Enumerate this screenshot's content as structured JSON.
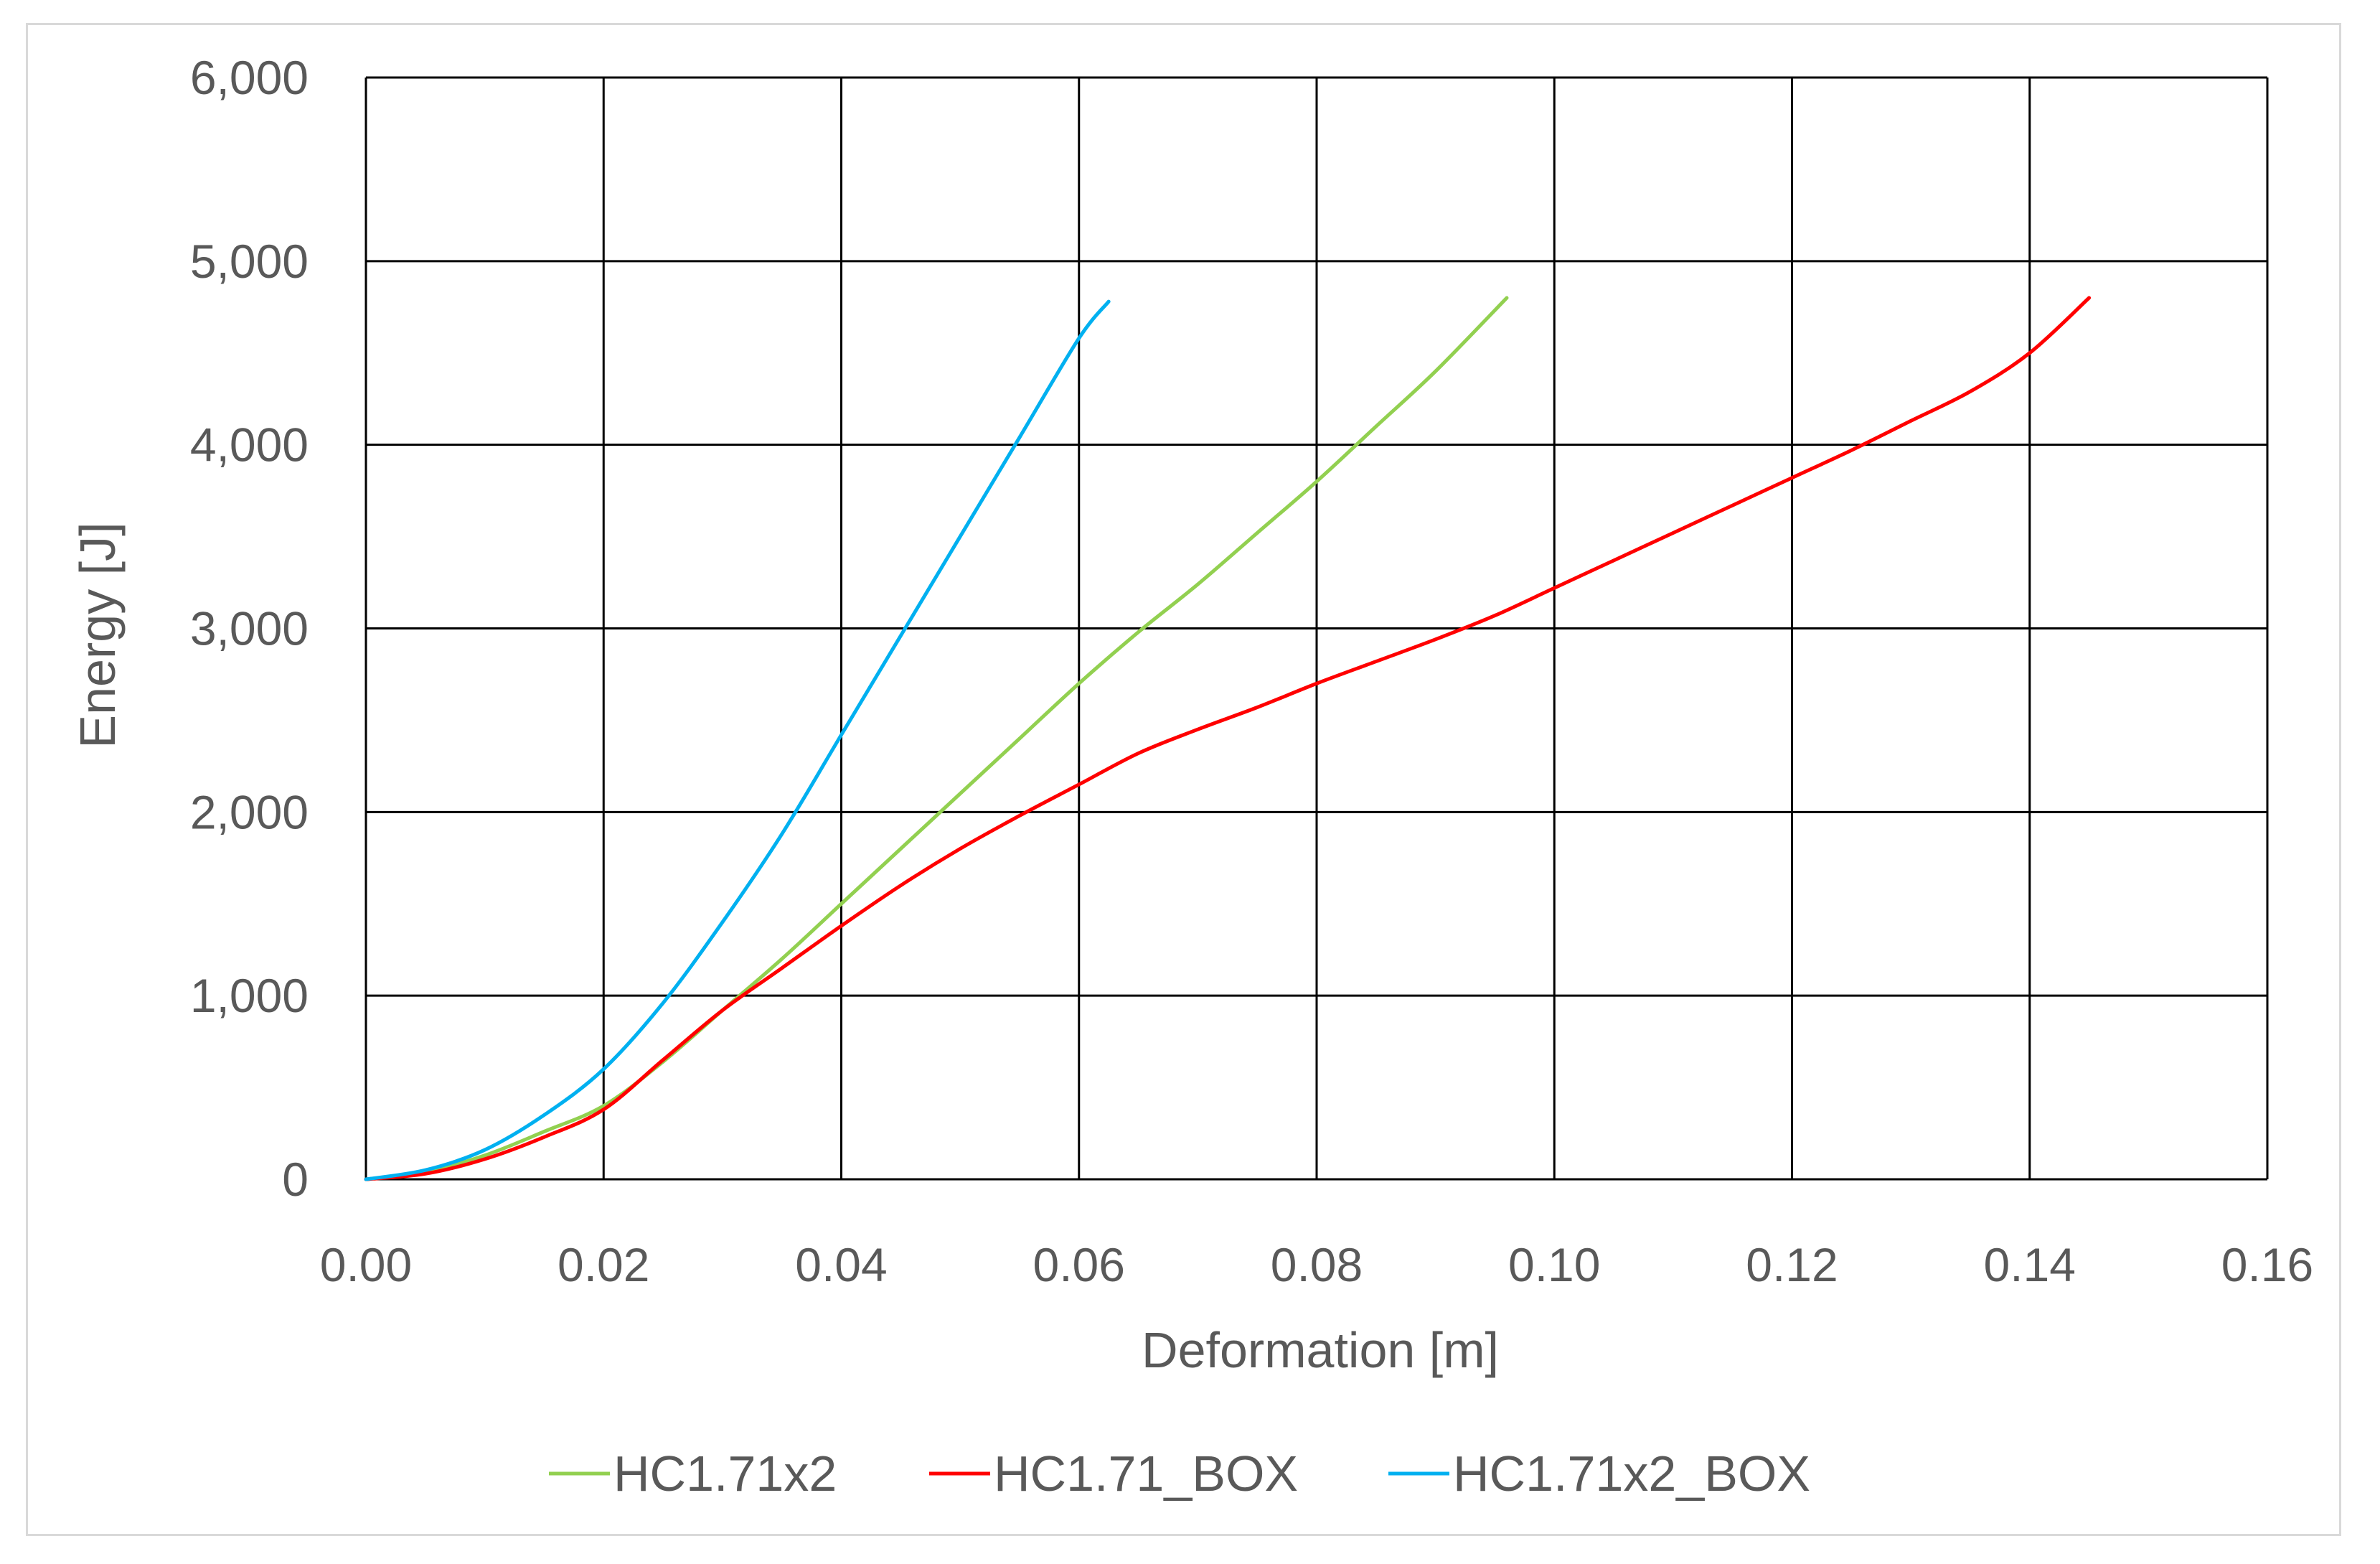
{
  "chart_data": {
    "type": "line",
    "title": "",
    "xlabel": "Deformation [m]",
    "ylabel": "Energy [J]",
    "xlim": [
      0,
      0.16
    ],
    "ylim": [
      0,
      6000
    ],
    "x_ticks": [
      "0.00",
      "0.02",
      "0.04",
      "0.06",
      "0.08",
      "0.10",
      "0.12",
      "0.14",
      "0.16"
    ],
    "y_ticks": [
      "0",
      "1,000",
      "2,000",
      "3,000",
      "4,000",
      "5,000",
      "6,000"
    ],
    "grid": true,
    "legend_position": "bottom",
    "series": [
      {
        "name": "HC1.71x2",
        "color": "#92d050",
        "points": [
          [
            0,
            0
          ],
          [
            0.005,
            40
          ],
          [
            0.01,
            130
          ],
          [
            0.015,
            260
          ],
          [
            0.02,
            400
          ],
          [
            0.025,
            640
          ],
          [
            0.03,
            920
          ],
          [
            0.035,
            1200
          ],
          [
            0.04,
            1500
          ],
          [
            0.045,
            1800
          ],
          [
            0.05,
            2100
          ],
          [
            0.055,
            2400
          ],
          [
            0.06,
            2700
          ],
          [
            0.065,
            2980
          ],
          [
            0.07,
            3240
          ],
          [
            0.075,
            3520
          ],
          [
            0.08,
            3800
          ],
          [
            0.085,
            4100
          ],
          [
            0.09,
            4400
          ],
          [
            0.096,
            4800
          ]
        ]
      },
      {
        "name": "HC1.71_BOX",
        "color": "#ff0000",
        "points": [
          [
            0,
            0
          ],
          [
            0.005,
            30
          ],
          [
            0.01,
            110
          ],
          [
            0.015,
            230
          ],
          [
            0.02,
            380
          ],
          [
            0.025,
            650
          ],
          [
            0.03,
            920
          ],
          [
            0.035,
            1150
          ],
          [
            0.04,
            1380
          ],
          [
            0.045,
            1600
          ],
          [
            0.05,
            1800
          ],
          [
            0.055,
            1980
          ],
          [
            0.06,
            2150
          ],
          [
            0.065,
            2320
          ],
          [
            0.07,
            2450
          ],
          [
            0.075,
            2570
          ],
          [
            0.08,
            2700
          ],
          [
            0.085,
            2820
          ],
          [
            0.09,
            2940
          ],
          [
            0.095,
            3070
          ],
          [
            0.1,
            3220
          ],
          [
            0.105,
            3370
          ],
          [
            0.11,
            3520
          ],
          [
            0.115,
            3670
          ],
          [
            0.12,
            3820
          ],
          [
            0.125,
            3970
          ],
          [
            0.13,
            4130
          ],
          [
            0.135,
            4290
          ],
          [
            0.14,
            4500
          ],
          [
            0.145,
            4800
          ]
        ]
      },
      {
        "name": "HC1.71x2_BOX",
        "color": "#00b0f0",
        "points": [
          [
            0,
            0
          ],
          [
            0.005,
            50
          ],
          [
            0.01,
            160
          ],
          [
            0.015,
            350
          ],
          [
            0.02,
            600
          ],
          [
            0.025,
            960
          ],
          [
            0.03,
            1400
          ],
          [
            0.035,
            1880
          ],
          [
            0.04,
            2420
          ],
          [
            0.045,
            2960
          ],
          [
            0.05,
            3500
          ],
          [
            0.055,
            4040
          ],
          [
            0.06,
            4580
          ],
          [
            0.0625,
            4780
          ]
        ]
      }
    ]
  }
}
